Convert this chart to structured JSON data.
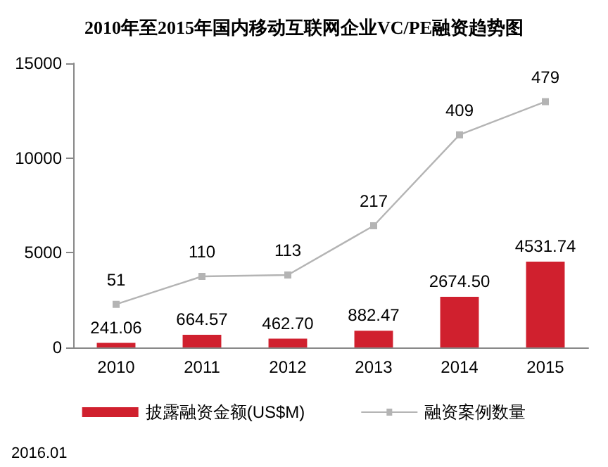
{
  "chart_data": {
    "type": "bar",
    "title": "2010年至2015年国内移动互联网企业VC/PE融资趋势图",
    "categories": [
      "2010",
      "2011",
      "2012",
      "2013",
      "2014",
      "2015"
    ],
    "series": [
      {
        "name": "披露融资金额(US$M)",
        "color": "#d0202e",
        "values": [
          241.06,
          664.57,
          462.7,
          882.47,
          2674.5,
          4531.74
        ],
        "value_labels": [
          "241.06",
          "664.57",
          "462.70",
          "882.47",
          "2674.50",
          "4531.74"
        ]
      },
      {
        "name": "融资案例数量",
        "type": "line",
        "axis": "y2",
        "color": "#b4b4b4",
        "values": [
          51,
          110,
          113,
          217,
          409,
          479
        ]
      }
    ],
    "ylim": [
      0,
      15000
    ],
    "yticks": [
      0,
      5000,
      10000,
      15000
    ],
    "y2lim": [
      -40,
      560
    ],
    "data_labels": true,
    "legend": "bottom",
    "grid": false,
    "marker": "square",
    "line_style": "solid",
    "annotations": [
      "2016.01"
    ]
  }
}
